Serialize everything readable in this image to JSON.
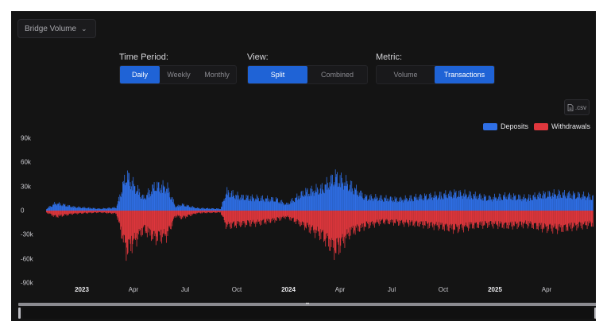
{
  "dropdown": {
    "label": "Bridge Volume",
    "icon": "chevron-down-icon"
  },
  "controls": {
    "time_period": {
      "label": "Time Period:",
      "options": [
        "Daily",
        "Weekly",
        "Monthly"
      ],
      "selected": "Daily"
    },
    "view": {
      "label": "View:",
      "options": [
        "Split",
        "Combined"
      ],
      "selected": "Split"
    },
    "metric": {
      "label": "Metric:",
      "options": [
        "Volume",
        "Transactions"
      ],
      "selected": "Transactions"
    }
  },
  "export": {
    "label": ".csv",
    "icon": "file-icon"
  },
  "colors": {
    "deposits": "#2f6fe6",
    "withdrawals": "#e0373d",
    "accent": "#1f63d6",
    "background": "#141414"
  },
  "chart_data": {
    "type": "bar",
    "legend": [
      "Deposits",
      "Withdrawals"
    ],
    "legend_position": "top-right",
    "ylim": [
      -90000,
      90000
    ],
    "y_ticks": [
      "90k",
      "60k",
      "30k",
      "0",
      "-30k",
      "-60k",
      "-90k"
    ],
    "x_ticks": [
      "2023",
      "Apr",
      "Jul",
      "Oct",
      "2024",
      "Apr",
      "Jul",
      "Oct",
      "2025",
      "Apr"
    ],
    "x_ticks_bold": [
      "2023",
      "2024",
      "2025"
    ],
    "grid": false,
    "date_range": [
      "2022-11-15",
      "2025-06-10"
    ],
    "series": [
      {
        "name": "Deposits",
        "points": [
          [
            "2022-11-15",
            3000
          ],
          [
            "2022-12-01",
            12000
          ],
          [
            "2023-01-01",
            6000
          ],
          [
            "2023-02-15",
            3000
          ],
          [
            "2023-03-15",
            5000
          ],
          [
            "2023-04-01",
            58000
          ],
          [
            "2023-04-15",
            40000
          ],
          [
            "2023-05-01",
            20000
          ],
          [
            "2023-05-20",
            40000
          ],
          [
            "2023-06-10",
            38000
          ],
          [
            "2023-06-25",
            6000
          ],
          [
            "2023-07-05",
            10000
          ],
          [
            "2023-08-01",
            4000
          ],
          [
            "2023-09-10",
            3000
          ],
          [
            "2023-09-20",
            30000
          ],
          [
            "2023-10-15",
            22000
          ],
          [
            "2023-11-15",
            20000
          ],
          [
            "2023-12-15",
            18000
          ],
          [
            "2024-01-01",
            10000
          ],
          [
            "2024-02-01",
            30000
          ],
          [
            "2024-03-01",
            35000
          ],
          [
            "2024-03-25",
            55000
          ],
          [
            "2024-04-20",
            40000
          ],
          [
            "2024-05-15",
            22000
          ],
          [
            "2024-06-15",
            20000
          ],
          [
            "2024-07-15",
            18000
          ],
          [
            "2024-08-15",
            22000
          ],
          [
            "2024-09-15",
            24000
          ],
          [
            "2024-10-15",
            28000
          ],
          [
            "2024-11-15",
            25000
          ],
          [
            "2024-12-15",
            20000
          ],
          [
            "2025-01-15",
            24000
          ],
          [
            "2025-02-15",
            20000
          ],
          [
            "2025-03-15",
            26000
          ],
          [
            "2025-04-15",
            27000
          ],
          [
            "2025-05-15",
            25000
          ],
          [
            "2025-06-10",
            22000
          ]
        ]
      },
      {
        "name": "Withdrawals",
        "points": [
          [
            "2022-11-15",
            -3000
          ],
          [
            "2022-12-01",
            -10000
          ],
          [
            "2023-01-01",
            -5000
          ],
          [
            "2023-02-15",
            -3000
          ],
          [
            "2023-03-15",
            -5000
          ],
          [
            "2023-04-01",
            -65000
          ],
          [
            "2023-04-15",
            -50000
          ],
          [
            "2023-05-01",
            -30000
          ],
          [
            "2023-05-20",
            -45000
          ],
          [
            "2023-06-10",
            -40000
          ],
          [
            "2023-06-25",
            -8000
          ],
          [
            "2023-07-05",
            -12000
          ],
          [
            "2023-08-01",
            -4000
          ],
          [
            "2023-09-10",
            -3000
          ],
          [
            "2023-09-20",
            -25000
          ],
          [
            "2023-10-15",
            -22000
          ],
          [
            "2023-11-15",
            -20000
          ],
          [
            "2023-12-15",
            -15000
          ],
          [
            "2024-01-01",
            -10000
          ],
          [
            "2024-02-01",
            -25000
          ],
          [
            "2024-03-01",
            -40000
          ],
          [
            "2024-03-25",
            -65000
          ],
          [
            "2024-04-20",
            -35000
          ],
          [
            "2024-05-15",
            -25000
          ],
          [
            "2024-06-15",
            -18000
          ],
          [
            "2024-07-15",
            -20000
          ],
          [
            "2024-08-15",
            -22000
          ],
          [
            "2024-09-15",
            -25000
          ],
          [
            "2024-10-15",
            -30000
          ],
          [
            "2024-11-15",
            -25000
          ],
          [
            "2024-12-15",
            -22000
          ],
          [
            "2025-01-15",
            -25000
          ],
          [
            "2025-02-15",
            -22000
          ],
          [
            "2025-03-15",
            -28000
          ],
          [
            "2025-04-15",
            -30000
          ],
          [
            "2025-05-15",
            -25000
          ],
          [
            "2025-06-10",
            -22000
          ]
        ]
      }
    ]
  }
}
